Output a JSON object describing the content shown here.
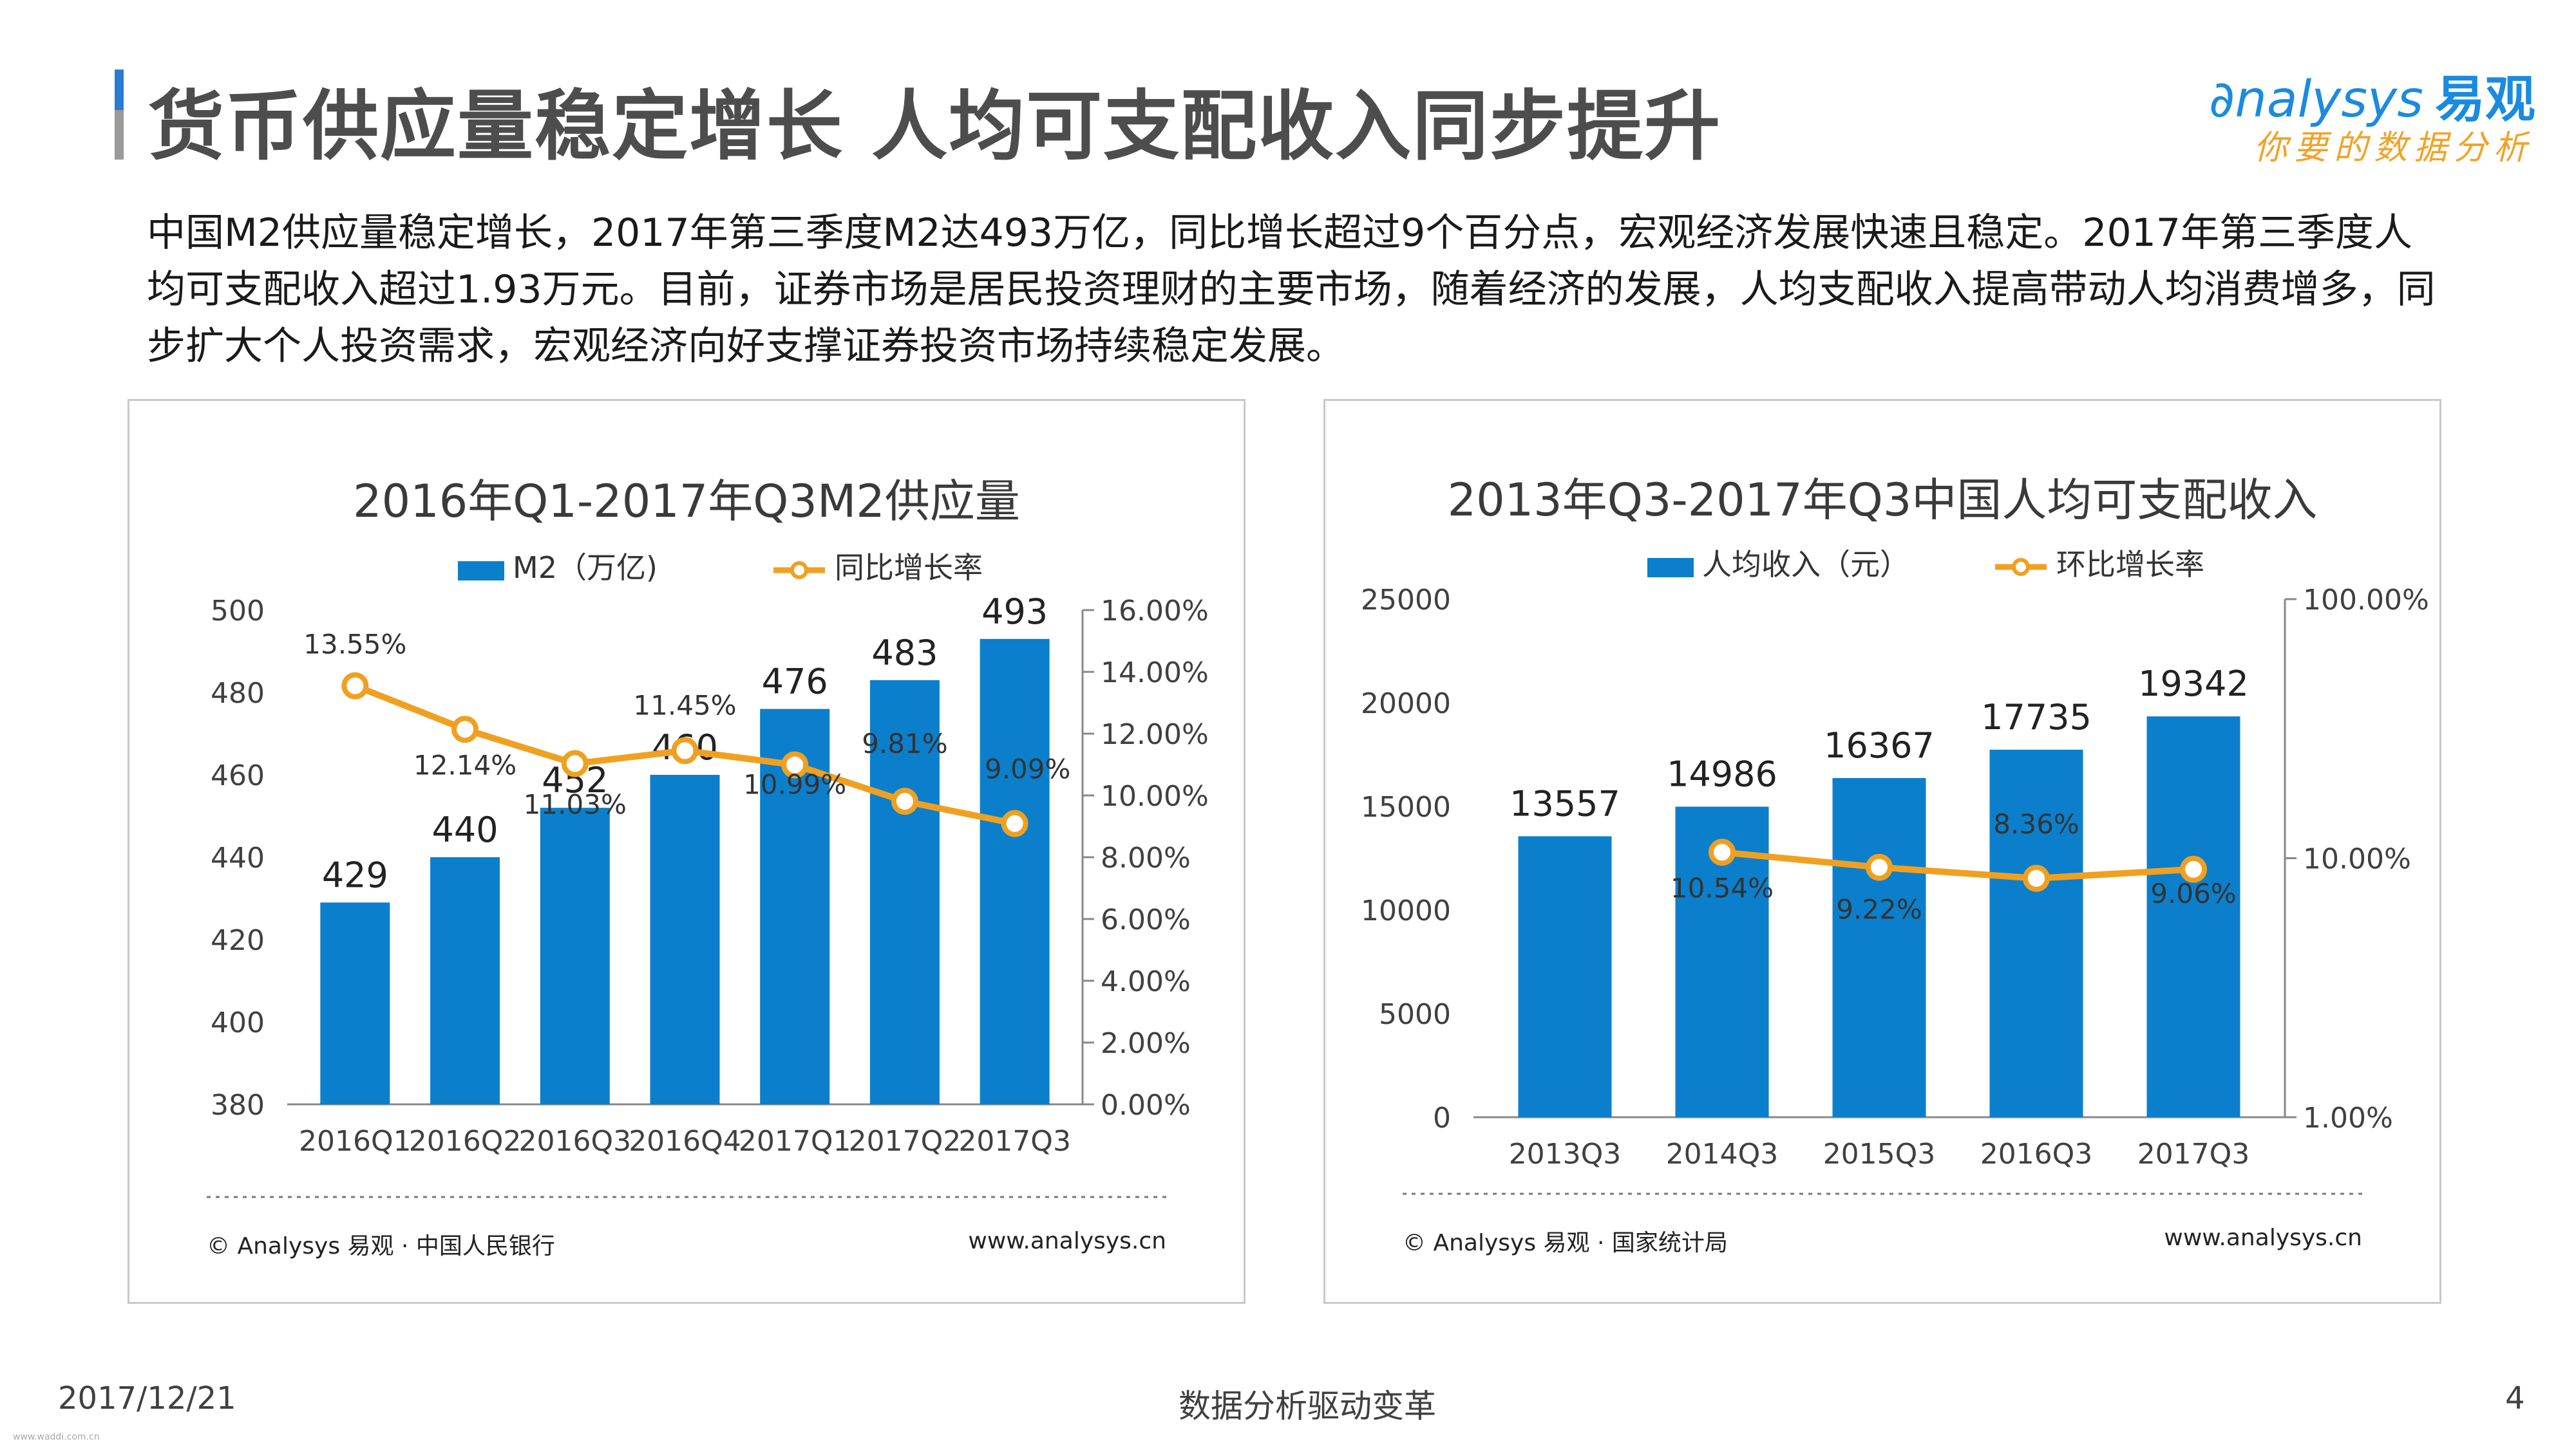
{
  "page": {
    "title": "货币供应量稳定增长  人均可支配收入同步提升",
    "intro": "中国M2供应量稳定增长，2017年第三季度M2达493万亿，同比增长超过9个百分点，宏观经济发展快速且稳定。2017年第三季度人均可支配收入超过1.93万元。目前，证券市场是居民投资理财的主要市场，随着经济的发展，人均支配收入提高带动人均消费增多，同步扩大个人投资需求，宏观经济向好支撑证券投资市场持续稳定发展。",
    "date": "2017/12/21",
    "center_footer": "数据分析驱动变革",
    "page_number": "4",
    "tiny_url": "www.waddi.com.cn"
  },
  "logo": {
    "brand": "nalysys",
    "brand_cn": "易观",
    "tagline": "你要的数据分析"
  },
  "colors": {
    "bar": "#0b7fcc",
    "line": "#f0a020",
    "title_gray": "#4d4d4d",
    "accent_blue": "#2b7bd0"
  },
  "chart_data": [
    {
      "type": "bar",
      "title": "2016年Q1-2017年Q3M2供应量",
      "categories": [
        "2016Q1",
        "2016Q2",
        "2016Q3",
        "2016Q4",
        "2017Q1",
        "2017Q2",
        "2017Q3"
      ],
      "series": [
        {
          "name": "M2（万亿)",
          "kind": "bar",
          "axis": "left",
          "values": [
            429,
            440,
            452,
            460,
            476,
            483,
            493
          ],
          "labels": [
            "429",
            "440",
            "452",
            "460",
            "476",
            "483",
            "493"
          ]
        },
        {
          "name": "同比增长率",
          "kind": "line",
          "axis": "right",
          "values": [
            13.55,
            12.14,
            11.03,
            11.45,
            10.99,
            9.81,
            9.09
          ],
          "labels": [
            "13.55%",
            "12.14%",
            "11.03%",
            "11.45%",
            "10.99%",
            "9.81%",
            "9.09%"
          ]
        }
      ],
      "left_ticks": [
        "500",
        "480",
        "460",
        "440",
        "420",
        "400",
        "380"
      ],
      "right_ticks": [
        "16.00%",
        "14.00%",
        "12.00%",
        "10.00%",
        "8.00%",
        "6.00%",
        "4.00%",
        "2.00%",
        "0.00%"
      ],
      "ylim": [
        380,
        500
      ],
      "y2lim": [
        0,
        16
      ],
      "source": "© Analysys 易观 · 中国人民银行",
      "site": "www.analysys.cn"
    },
    {
      "type": "bar",
      "title": "2013年Q3-2017年Q3中国人均可支配收入",
      "categories": [
        "2013Q3",
        "2014Q3",
        "2015Q3",
        "2016Q3",
        "2017Q3"
      ],
      "series": [
        {
          "name": "人均收入（元）",
          "kind": "bar",
          "axis": "left",
          "values": [
            13557,
            14986,
            16367,
            17735,
            19342
          ],
          "labels": [
            "13557",
            "14986",
            "16367",
            "17735",
            "19342"
          ]
        },
        {
          "name": "环比增长率",
          "kind": "line",
          "axis": "right",
          "values": [
            null,
            10.54,
            9.22,
            8.36,
            9.06
          ],
          "labels": [
            "",
            "10.54%",
            "9.22%",
            "8.36%",
            "9.06%"
          ]
        }
      ],
      "left_ticks": [
        "25000",
        "20000",
        "15000",
        "10000",
        "5000",
        "0"
      ],
      "right_ticks": [
        "100.00%",
        "10.00%",
        "1.00%"
      ],
      "ylim": [
        0,
        25000
      ],
      "y2lim": [
        1,
        100
      ],
      "y2scale": "log",
      "source": "© Analysys 易观 · 国家统计局",
      "site": "www.analysys.cn"
    }
  ]
}
